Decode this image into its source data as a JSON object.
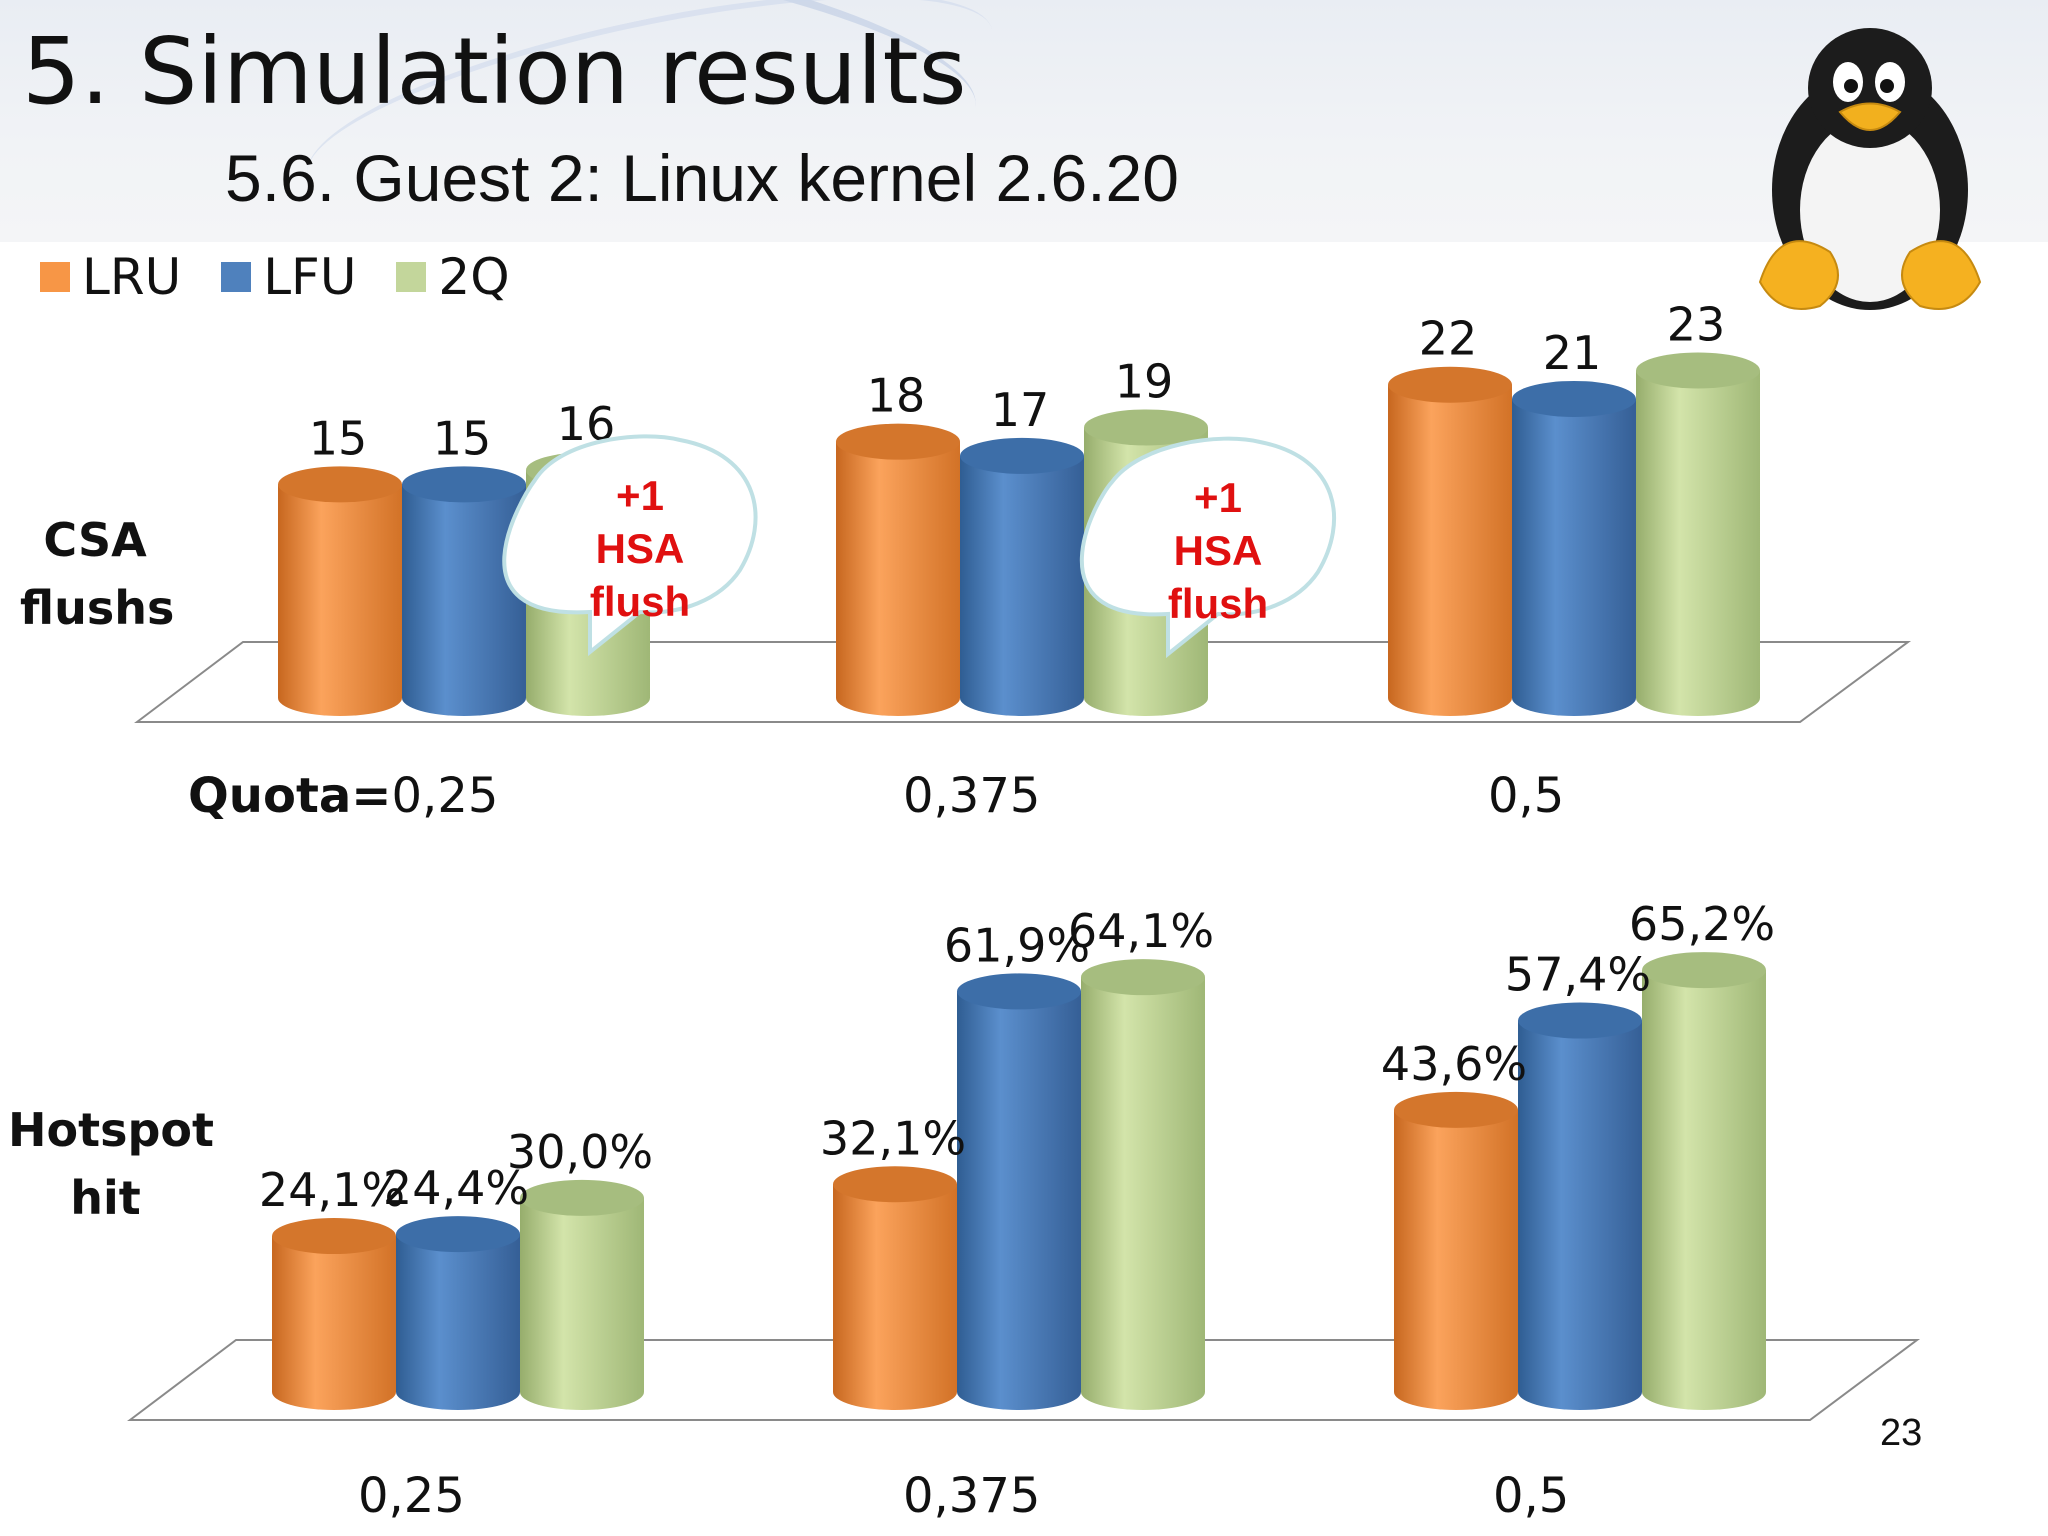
{
  "slide": {
    "title": "5. Simulation results",
    "subtitle": "5.6. Guest 2: Linux kernel 2.6.20",
    "page_number": "23"
  },
  "colors": {
    "lru": "#f79646",
    "lfu": "#4f81bd",
    "q2": "#c3d69b",
    "callout_text": "#e01010"
  },
  "icons": {
    "mascot": "penguin-icon"
  },
  "chart_data": [
    {
      "type": "bar",
      "ylabel": "CSA flushes",
      "categories": [
        "0,25",
        "0,375",
        "0,5"
      ],
      "category_prefix": "Quota=",
      "legend": [
        "LRU",
        "LFU",
        "2Q"
      ],
      "series": [
        {
          "name": "LRU",
          "values": [
            15,
            18,
            22
          ],
          "labels": [
            "15",
            "18",
            "22"
          ]
        },
        {
          "name": "LFU",
          "values": [
            15,
            17,
            21
          ],
          "labels": [
            "15",
            "17",
            "21"
          ]
        },
        {
          "name": "2Q",
          "values": [
            16,
            19,
            23
          ],
          "labels": [
            "16",
            "19",
            "23"
          ]
        }
      ],
      "annotations": [
        {
          "category": "0,25",
          "lines": [
            "+1",
            "HSA",
            "flush"
          ]
        },
        {
          "category": "0,375",
          "lines": [
            "+1",
            "HSA",
            "flush"
          ]
        }
      ],
      "ylim": [
        0,
        25
      ]
    },
    {
      "type": "bar",
      "ylabel": "Hotspot hit",
      "categories": [
        "0,25",
        "0,375",
        "0,5"
      ],
      "series": [
        {
          "name": "LRU",
          "values": [
            24.1,
            32.1,
            43.6
          ],
          "labels": [
            "24,1%",
            "32,1%",
            "43,6%"
          ]
        },
        {
          "name": "LFU",
          "values": [
            24.4,
            61.9,
            57.4
          ],
          "labels": [
            "24,4%",
            "61,9%",
            "57,4%"
          ]
        },
        {
          "name": "2Q",
          "values": [
            30.0,
            64.1,
            65.2
          ],
          "labels": [
            "30,0%",
            "64,1%",
            "65,2%"
          ]
        }
      ],
      "ylim": [
        0,
        70
      ]
    }
  ],
  "side_labels": {
    "top": [
      "CSA",
      "flushs"
    ],
    "bottom": [
      "Hotspot",
      "hit"
    ]
  }
}
